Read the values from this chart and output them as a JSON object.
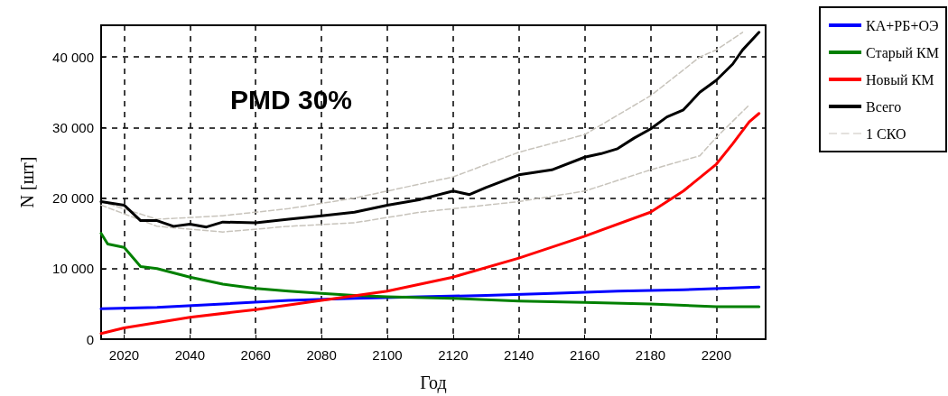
{
  "chart_data": {
    "type": "line",
    "xlabel": "Год",
    "ylabel": "N [шт]",
    "annotations": [
      "PMD 30%"
    ],
    "xlim": [
      2013,
      2215
    ],
    "xticks": [
      2020,
      2040,
      2060,
      2080,
      2100,
      2120,
      2140,
      2160,
      2180,
      2200
    ],
    "ylim": [
      0,
      44500
    ],
    "yticks": [
      0,
      {
        "value": 10000,
        "label": "10 000"
      },
      {
        "value": 20000,
        "label": "20 000"
      },
      {
        "value": 30000,
        "label": "30 000"
      },
      {
        "value": 40000,
        "label": "40 000"
      }
    ],
    "grid": true,
    "legend": "right",
    "marker": "none",
    "series": [
      {
        "name": "КА+РБ+ОЭ",
        "color": "#0000ff",
        "x": [
          2013,
          2030,
          2050,
          2070,
          2090,
          2110,
          2130,
          2150,
          2170,
          2190,
          2213
        ],
        "values": [
          4300,
          4500,
          5000,
          5500,
          5800,
          6000,
          6200,
          6500,
          6800,
          7000,
          7400
        ]
      },
      {
        "name": "Старый КМ",
        "color": "#008000",
        "x": [
          2013,
          2015,
          2020,
          2025,
          2030,
          2040,
          2050,
          2060,
          2070,
          2080,
          2090,
          2100,
          2120,
          2140,
          2160,
          2180,
          2200,
          2213
        ],
        "values": [
          15000,
          13500,
          13000,
          10300,
          10000,
          8800,
          7800,
          7200,
          6800,
          6500,
          6200,
          6000,
          5800,
          5400,
          5200,
          5000,
          4600,
          4600
        ]
      },
      {
        "name": "Новый КМ",
        "color": "#ff0000",
        "x": [
          2013,
          2020,
          2040,
          2060,
          2080,
          2100,
          2120,
          2140,
          2160,
          2180,
          2190,
          2200,
          2205,
          2210,
          2213
        ],
        "values": [
          800,
          1600,
          3100,
          4200,
          5500,
          6800,
          8800,
          11500,
          14600,
          18000,
          21000,
          24800,
          27700,
          30800,
          32000
        ]
      },
      {
        "name": "Всего",
        "color": "#000000",
        "x": [
          2013,
          2020,
          2025,
          2030,
          2035,
          2040,
          2045,
          2050,
          2060,
          2070,
          2080,
          2090,
          2100,
          2110,
          2120,
          2125,
          2130,
          2140,
          2150,
          2160,
          2165,
          2170,
          2175,
          2180,
          2185,
          2190,
          2195,
          2200,
          2205,
          2208,
          2213
        ],
        "values": [
          19500,
          19000,
          16800,
          16800,
          16000,
          16300,
          15900,
          16600,
          16500,
          17000,
          17500,
          18000,
          19000,
          19800,
          21000,
          20500,
          21500,
          23300,
          24000,
          25800,
          26300,
          27000,
          28500,
          29800,
          31500,
          32500,
          35000,
          36700,
          39000,
          41000,
          43500
        ]
      },
      {
        "name": "1 СКО",
        "color": "#c8c4bc",
        "line_style": "dashed",
        "x": [
          2013,
          2030,
          2050,
          2070,
          2090,
          2110,
          2120,
          2140,
          2160,
          2180,
          2195,
          2200,
          2208
        ],
        "values": [
          19500,
          17000,
          17500,
          18500,
          20000,
          22000,
          23000,
          26500,
          29000,
          34500,
          40000,
          41000,
          43500
        ]
      },
      {
        "color": "#c8c4bc",
        "line_style": "dashed",
        "x": [
          2013,
          2030,
          2050,
          2070,
          2090,
          2110,
          2120,
          2140,
          2160,
          2180,
          2195,
          2200,
          2210
        ],
        "values": [
          19000,
          16000,
          15200,
          16000,
          16500,
          18000,
          18500,
          19500,
          21000,
          24000,
          26000,
          28600,
          33200
        ]
      }
    ]
  }
}
